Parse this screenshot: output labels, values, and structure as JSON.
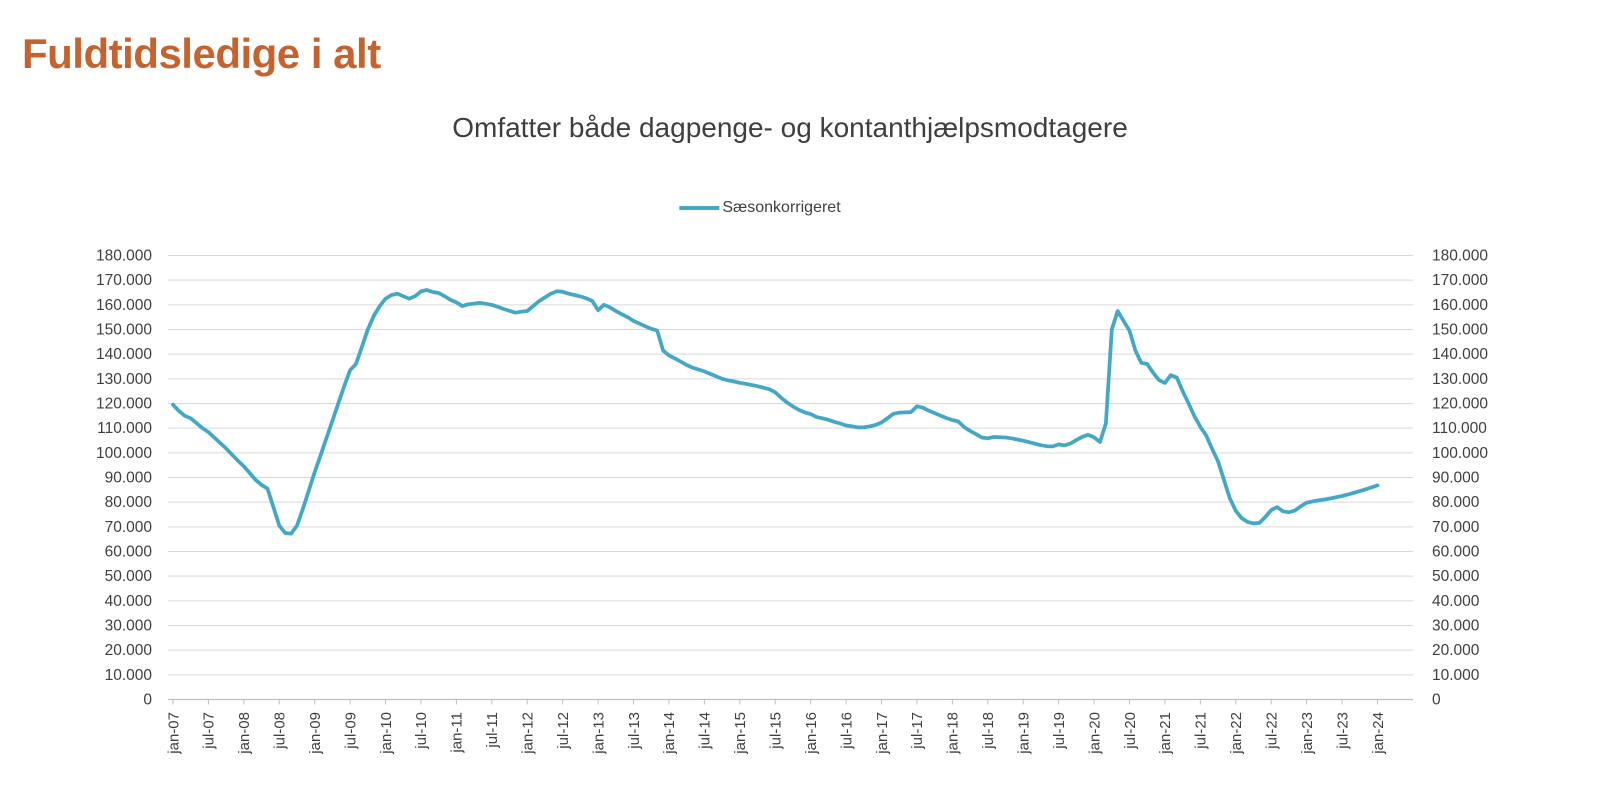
{
  "title": {
    "text": "Fuldtidsledige i alt",
    "color": "#C4632F"
  },
  "chart": {
    "subtitle": "Omfatter både dagpenge- og kontanthjælpsmodtagere",
    "legend": [
      {
        "label": "Sæsonkorrigeret",
        "color": "#45A7C6"
      }
    ]
  },
  "colors": {
    "gridline": "#D9D9D9",
    "axis_line": "#BFBFBF",
    "label_text": "#404040"
  },
  "chart_data": {
    "type": "line",
    "title": "Omfatter både dagpenge- og kontanthjælpsmodtagere",
    "xlabel": "",
    "ylabel": "",
    "ylim": [
      0,
      180000
    ],
    "y_tick_step": 10000,
    "grid": "horizontal",
    "legend_position": "top-center",
    "dual_y_axis": true,
    "y_tick_labels": [
      "180.000",
      "170.000",
      "160.000",
      "150.000",
      "140.000",
      "130.000",
      "120.000",
      "110.000",
      "100.000",
      "90.000",
      "80.000",
      "70.000",
      "60.000",
      "50.000",
      "40.000",
      "30.000",
      "20.000",
      "10.000",
      "0"
    ],
    "x_tick_labels": [
      "jan-07",
      "jul-07",
      "jan-08",
      "jul-08",
      "jan-09",
      "jul-09",
      "jan-10",
      "jul-10",
      "jan-11",
      "jul-11",
      "jan-12",
      "jul-12",
      "jan-13",
      "jul-13",
      "jan-14",
      "jul-14",
      "jan-15",
      "jul-15",
      "jan-16",
      "jul-16",
      "jan-17",
      "jul-17",
      "jan-18",
      "jul-18",
      "jan-19",
      "jul-19",
      "jan-20",
      "jul-20",
      "jan-21",
      "jul-21",
      "jan-22",
      "jul-22",
      "jan-23",
      "jul-23",
      "jan-24"
    ],
    "x_unit": "month",
    "x_start": "jan-07",
    "x_end": "jan-24",
    "series": [
      {
        "name": "Sæsonkorrigeret",
        "color": "#45A7C6",
        "values": [
          119500,
          117000,
          115000,
          114000,
          112000,
          110000,
          108400,
          106200,
          104000,
          101800,
          99300,
          96800,
          94500,
          91800,
          89000,
          87000,
          85500,
          78000,
          70500,
          67500,
          67200,
          70500,
          77300,
          84700,
          92200,
          99000,
          106000,
          113000,
          120000,
          127000,
          133500,
          136000,
          143000,
          150000,
          155500,
          159500,
          162500,
          164000,
          164500,
          163500,
          162500,
          163500,
          165500,
          166000,
          165200,
          164800,
          163500,
          162000,
          161000,
          159500,
          160200,
          160500,
          160800,
          160400,
          160000,
          159200,
          158300,
          157600,
          156800,
          157200,
          157500,
          159500,
          161500,
          163000,
          164500,
          165500,
          165300,
          164500,
          164000,
          163400,
          162600,
          161600,
          157800,
          160000,
          159000,
          157500,
          156200,
          155000,
          153500,
          152400,
          151300,
          150300,
          149600,
          141500,
          139500,
          138300,
          137000,
          135600,
          134500,
          133800,
          133000,
          132000,
          131000,
          130000,
          129400,
          128900,
          128400,
          128000,
          127500,
          127000,
          126400,
          125800,
          124500,
          122300,
          120400,
          118800,
          117400,
          116400,
          115700,
          114500,
          114000,
          113400,
          112600,
          111900,
          111100,
          110700,
          110300,
          110300,
          110700,
          111300,
          112300,
          114000,
          115800,
          116300,
          116400,
          116500,
          118900,
          118300,
          117100,
          116100,
          115100,
          114100,
          113300,
          112700,
          110400,
          108900,
          107600,
          106200,
          105900,
          106400,
          106300,
          106200,
          105900,
          105400,
          104900,
          104300,
          103700,
          103100,
          102700,
          102600,
          103400,
          103000,
          103800,
          105200,
          106500,
          107300,
          106300,
          104400,
          112000,
          150000,
          157500,
          153500,
          149500,
          141500,
          136500,
          136000,
          132500,
          129500,
          128300,
          131500,
          130500,
          125000,
          120000,
          114800,
          110500,
          107000,
          101500,
          96500,
          89000,
          81500,
          76500,
          73500,
          72000,
          71400,
          71600,
          74000,
          76800,
          78000,
          76300,
          75900,
          76600,
          78300,
          79800,
          80300,
          80700,
          81100,
          81500,
          82000,
          82500,
          83100,
          83800,
          84500,
          85200,
          86000,
          86800
        ]
      }
    ]
  }
}
